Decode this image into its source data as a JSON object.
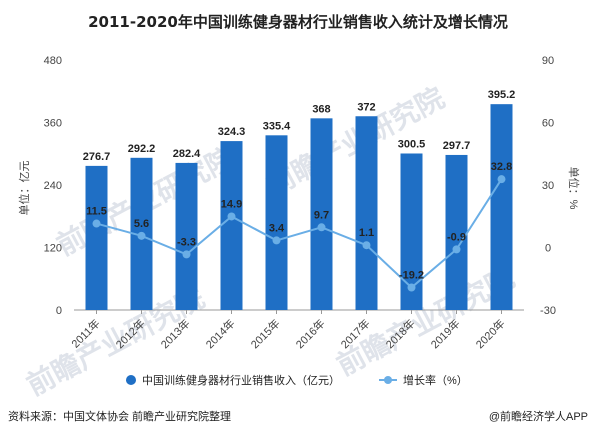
{
  "colors": {
    "bar": "#1f6fc5",
    "line": "#6aaee6",
    "axis": "#999999"
  },
  "chart_data": {
    "type": "bar",
    "title": "2011-2020年中国训练健身器材行业销售收入统计及增长情况",
    "categories": [
      "2011年",
      "2012年",
      "2013年",
      "2014年",
      "2015年",
      "2016年",
      "2017年",
      "2018年",
      "2019年",
      "2020年"
    ],
    "series": [
      {
        "name": "中国训练健身器材行业销售收入（亿元）",
        "type": "bar",
        "axis": "left",
        "values": [
          276.7,
          292.2,
          282.4,
          324.3,
          335.4,
          368,
          372,
          300.5,
          297.7,
          395.2
        ]
      },
      {
        "name": "增长率（%）",
        "type": "line",
        "axis": "right",
        "values": [
          11.5,
          5.6,
          -3.3,
          14.9,
          3.4,
          9.7,
          1.1,
          -19.2,
          -0.9,
          32.8
        ]
      }
    ],
    "ylabel_left": "单位：亿元",
    "ylabel_right": "单位：%",
    "ylim_left": [
      0,
      480
    ],
    "yticks_left": [
      0,
      120,
      240,
      360,
      480
    ],
    "ylim_right": [
      -30,
      90
    ],
    "yticks_right": [
      -30,
      0,
      30,
      60,
      90
    ],
    "legend_position": "bottom",
    "grid": false
  },
  "footer": {
    "source": "资料来源：中国文体协会 前瞻产业研究院整理",
    "brand": "@前瞻经济学人APP"
  },
  "watermark": "前瞻产业研究院"
}
